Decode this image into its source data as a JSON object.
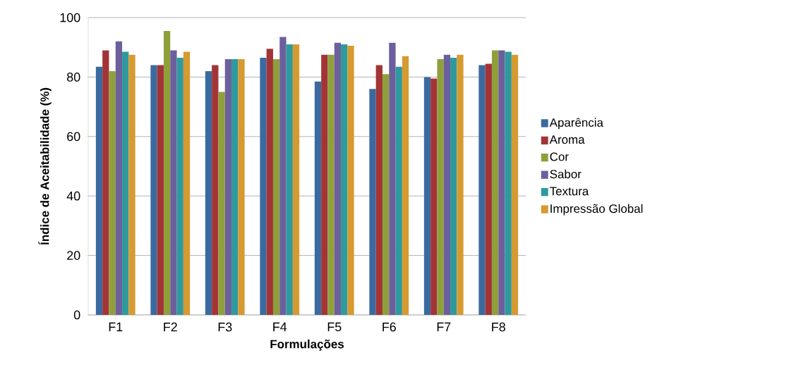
{
  "chart_data": {
    "type": "bar",
    "xlabel": "Formulações",
    "ylabel": "Índice de Aceitabilidade (%)",
    "categories": [
      "F1",
      "F2",
      "F3",
      "F4",
      "F5",
      "F6",
      "F7",
      "F8"
    ],
    "series": [
      {
        "name": "Aparência",
        "color": "#3a6aa0",
        "values": [
          83.5,
          84,
          82,
          86.5,
          78.5,
          76,
          80,
          84
        ]
      },
      {
        "name": "Aroma",
        "color": "#a33436",
        "values": [
          89,
          84,
          84,
          89.5,
          87.5,
          84,
          79.5,
          84.5
        ]
      },
      {
        "name": "Cor",
        "color": "#8fa03a",
        "values": [
          82,
          95.5,
          75,
          86,
          87.5,
          81,
          86,
          89
        ]
      },
      {
        "name": "Sabor",
        "color": "#6c5f9c",
        "values": [
          92,
          89,
          86,
          93.5,
          91.5,
          91.5,
          87.5,
          89
        ]
      },
      {
        "name": "Textura",
        "color": "#2e9a9e",
        "values": [
          88.5,
          86.5,
          86,
          91,
          91,
          83.5,
          86.5,
          88.5
        ]
      },
      {
        "name": "Impressão Global",
        "color": "#d69a30",
        "values": [
          87.5,
          88.5,
          86,
          91,
          90.5,
          87,
          87.5,
          87.5
        ]
      }
    ],
    "ylim": [
      0,
      100
    ],
    "yticks": [
      0,
      20,
      40,
      60,
      80,
      100
    ],
    "grid": "y",
    "legend": "right"
  }
}
